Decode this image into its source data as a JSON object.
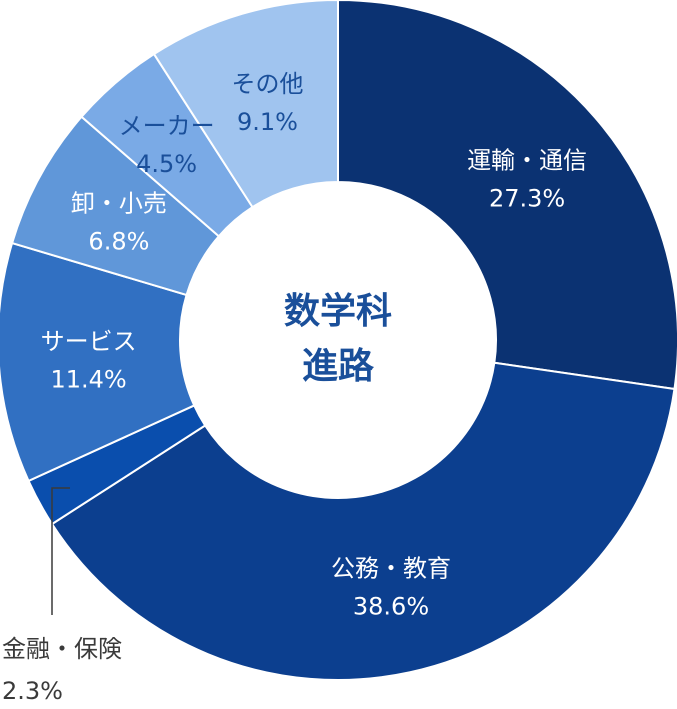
{
  "chart_data": {
    "type": "pie",
    "title": "",
    "center_label": [
      "数学科",
      "進路"
    ],
    "categories": [
      "運輸・通信",
      "公務・教育",
      "金融・保険",
      "サービス",
      "卸・小売",
      "メーカー",
      "その他"
    ],
    "values": [
      27.3,
      38.6,
      2.3,
      11.4,
      6.8,
      4.5,
      9.1
    ],
    "value_labels": [
      "27.3%",
      "38.6%",
      "2.3%",
      "11.4%",
      "6.8%",
      "4.5%",
      "9.1%"
    ],
    "colors": [
      "#0b3272",
      "#0c3f8f",
      "#0a4ead",
      "#3170c2",
      "#6097d9",
      "#7aaae6",
      "#a0c4ef"
    ],
    "label_colors": [
      "#ffffff",
      "#ffffff",
      "#3a3a3a",
      "#ffffff",
      "#ffffff",
      "#1a4f9a",
      "#1a4f9a"
    ],
    "center_color": "#1a4f9a"
  }
}
